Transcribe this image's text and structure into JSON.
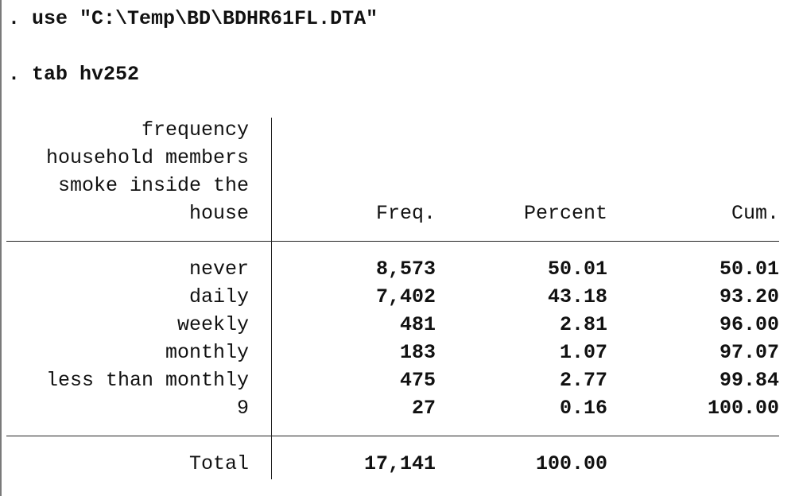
{
  "commands": [
    ". use \"C:\\Temp\\BD\\BDHR61FL.DTA\"",
    ". tab hv252"
  ],
  "table": {
    "var_label_lines": [
      "frequency",
      "household members",
      "smoke inside the",
      "house"
    ],
    "headers": {
      "freq": "Freq.",
      "percent": "Percent",
      "cum": "Cum."
    },
    "rows": [
      {
        "label": "never",
        "freq": "8,573",
        "percent": "50.01",
        "cum": "50.01"
      },
      {
        "label": "daily",
        "freq": "7,402",
        "percent": "43.18",
        "cum": "93.20"
      },
      {
        "label": "weekly",
        "freq": "481",
        "percent": "2.81",
        "cum": "96.00"
      },
      {
        "label": "monthly",
        "freq": "183",
        "percent": "1.07",
        "cum": "97.07"
      },
      {
        "label": "less than monthly",
        "freq": "475",
        "percent": "2.77",
        "cum": "99.84"
      },
      {
        "label": "9",
        "freq": "27",
        "percent": "0.16",
        "cum": "100.00"
      }
    ],
    "total": {
      "label": "Total",
      "freq": "17,141",
      "percent": "100.00"
    }
  }
}
